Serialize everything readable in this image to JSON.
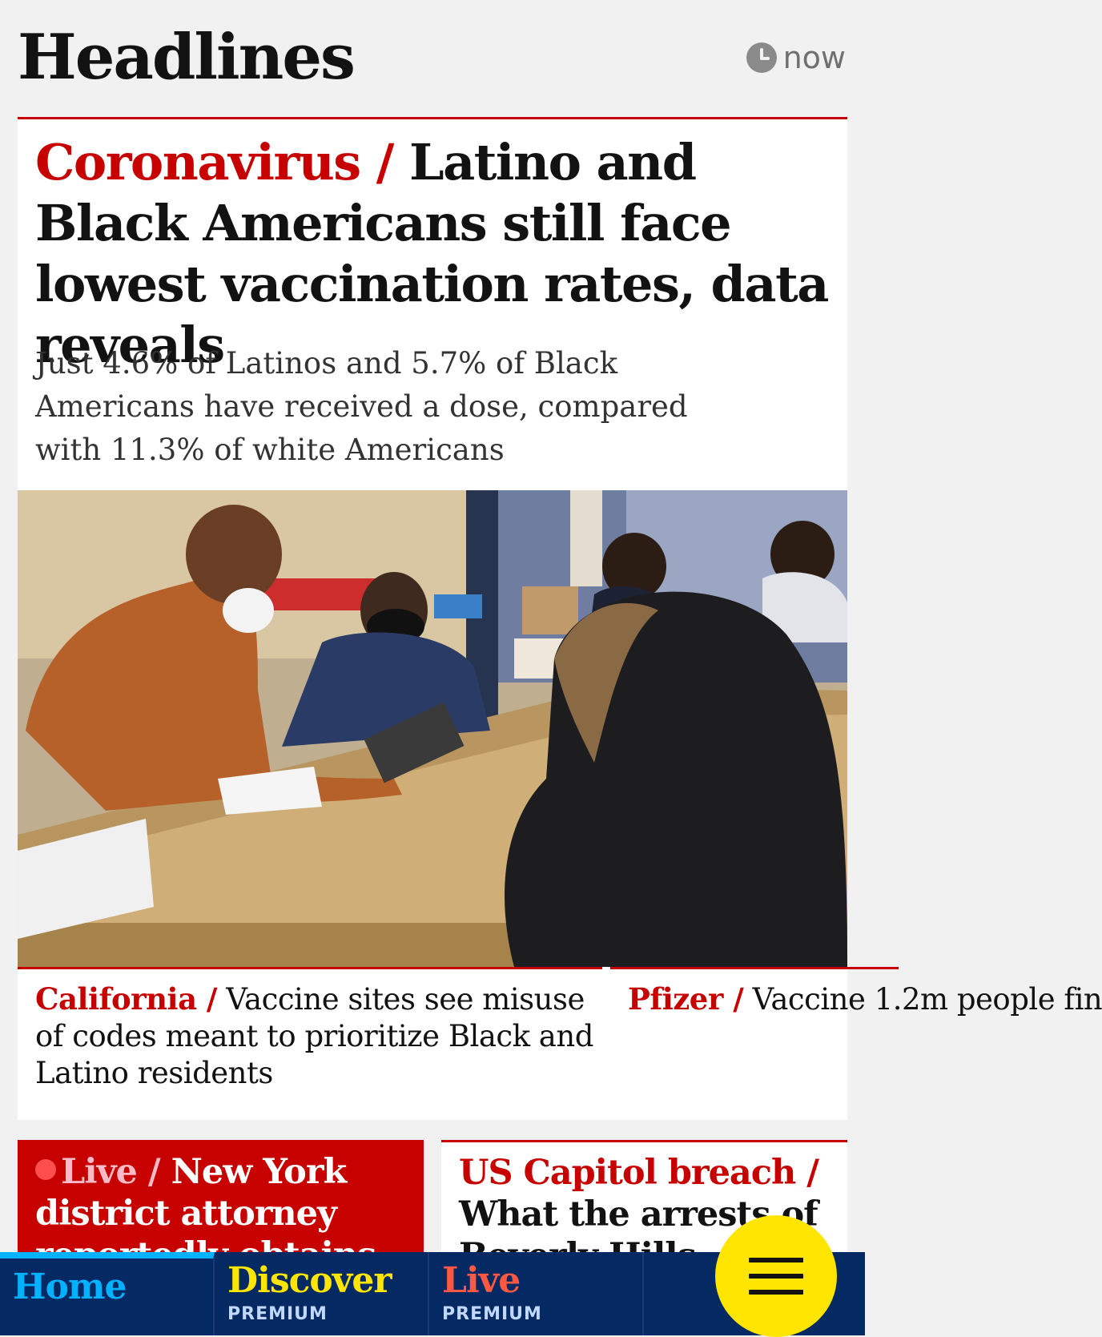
{
  "header": {
    "title": "Headlines",
    "updated": "now"
  },
  "main_story": {
    "kicker": "Coronavirus /",
    "headline": "Latino and Black Americans still face lowest vaccination rates, data reveals",
    "standfirst": "Just 4.6% of Latinos and 5.7% of Black Americans have received a dose, compared with 11.3% of white Americans",
    "related": [
      {
        "kicker": "California /",
        "text": "Vaccine sites see misuse of codes meant to prioritize Black and Latino residents"
      },
      {
        "kicker": "Pfizer /",
        "text": "Vaccine 1.2m people fin"
      }
    ]
  },
  "cards": [
    {
      "kicker": "Live /",
      "headline": "New York district attorney reportedly obtains"
    },
    {
      "kicker": "US Capitol breach /",
      "headline": "What the arrests of Beverly Hills"
    }
  ],
  "nav": [
    {
      "label": "Home",
      "sublabel": ""
    },
    {
      "label": "Discover",
      "sublabel": "PREMIUM"
    },
    {
      "label": "Live",
      "sublabel": "PREMIUM"
    }
  ],
  "colors": {
    "accent_red": "#c70000",
    "nav_blue": "#052962",
    "menu_yellow": "#ffe500",
    "home_blue": "#00b2ff"
  },
  "icons": {
    "clock": "clock-icon",
    "menu": "menu-icon"
  }
}
